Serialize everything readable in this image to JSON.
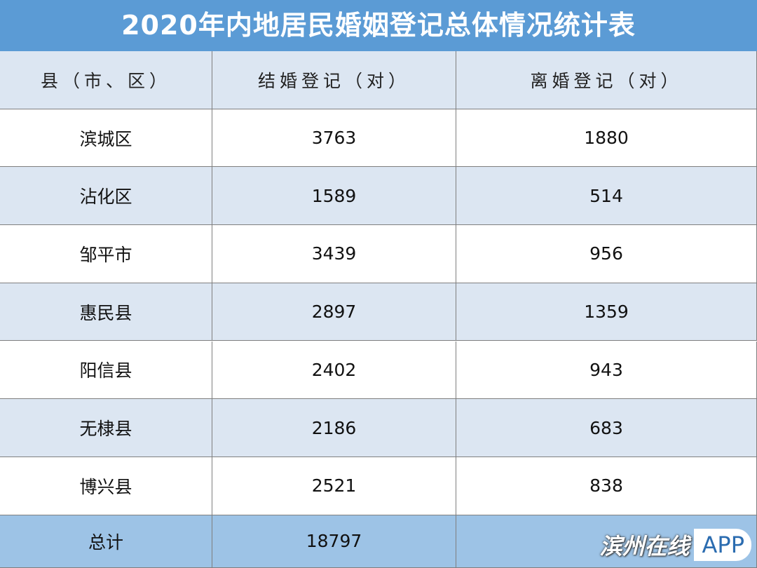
{
  "title": "2020年内地居民婚姻登记总体情况统计表",
  "table": {
    "header": [
      "县（市、区）",
      "结婚登记（对）",
      "离婚登记（对）"
    ],
    "rows": [
      [
        "滨城区",
        "3763",
        "1880"
      ],
      [
        "沾化区",
        "1589",
        "514"
      ],
      [
        "邹平市",
        "3439",
        "956"
      ],
      [
        "惠民县",
        "2897",
        "1359"
      ],
      [
        "阳信县",
        "2402",
        "943"
      ],
      [
        "无棣县",
        "2186",
        "683"
      ],
      [
        "博兴县",
        "2521",
        "838"
      ]
    ],
    "total": [
      "总计",
      "18797"
    ]
  },
  "watermark": {
    "brand": "滨州在线",
    "suffix": "APP"
  }
}
